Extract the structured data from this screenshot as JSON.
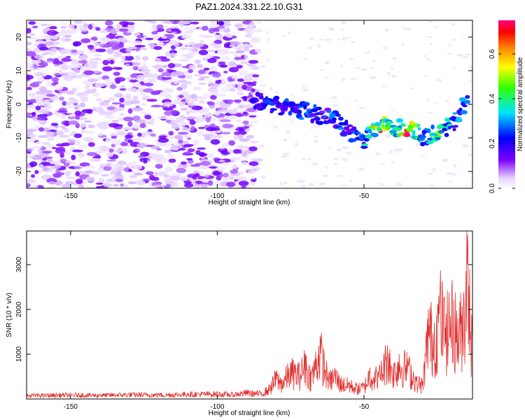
{
  "title": "PAZ1.2024.331.22.10.G31",
  "chart_data": [
    {
      "type": "heatmap",
      "title": "PAZ1.2024.331.22.10.G31",
      "xlabel": "Height of straight line (km)",
      "ylabel": "Frequency (Hz)",
      "xlim": [
        -165,
        -13
      ],
      "ylim": [
        -25,
        25
      ],
      "xticks": [
        -150,
        -100,
        -50
      ],
      "yticks": [
        -20,
        -10,
        0,
        10,
        20
      ],
      "colorbar": {
        "label": "Normalized spectral amplitude",
        "range": [
          0.0,
          0.75
        ],
        "ticks": [
          "0.0",
          "0.2",
          "0.4",
          "0.6"
        ],
        "colormap": "hsv (purple-blue-cyan-green-yellow-red-magenta)"
      },
      "noise_region_x": [
        -165,
        -86
      ],
      "signal_track": {
        "x": [
          -88,
          -80,
          -75,
          -70,
          -65,
          -60,
          -55,
          -50,
          -45,
          -40,
          -35,
          -30,
          -25,
          -20,
          -15
        ],
        "frequency": [
          1,
          0,
          -1,
          -2,
          -3,
          -5,
          -8,
          -11,
          -6,
          -7,
          -7,
          -10,
          -8,
          -6,
          1
        ],
        "amplitude": [
          0.2,
          0.3,
          0.25,
          0.3,
          0.25,
          0.3,
          0.25,
          0.35,
          0.7,
          0.4,
          0.75,
          0.35,
          0.5,
          0.35,
          0.3
        ]
      },
      "grid": false
    },
    {
      "type": "line",
      "xlabel": "Height of straight line (km)",
      "ylabel": "SNR (10 * v/v)",
      "xlim": [
        -165,
        -13
      ],
      "ylim": [
        0,
        3750
      ],
      "xticks": [
        -150,
        -100,
        -50
      ],
      "yticks": [
        1000,
        2000,
        3000
      ],
      "color": "#e03030",
      "series": [
        {
          "x": [
            -165,
            -150,
            -140,
            -130,
            -120,
            -110,
            -100,
            -95,
            -90,
            -85,
            -82,
            -80,
            -78,
            -75,
            -72,
            -70,
            -68,
            -65,
            -62,
            -60,
            -58,
            -55,
            -52,
            -50,
            -48,
            -45,
            -42,
            -40,
            -38,
            -35,
            -32,
            -30,
            -28,
            -26,
            -24,
            -22,
            -20,
            -18,
            -16,
            -15,
            -14,
            -13
          ],
          "values": [
            100,
            120,
            110,
            130,
            120,
            140,
            150,
            130,
            180,
            150,
            300,
            600,
            450,
            800,
            700,
            1000,
            600,
            1400,
            500,
            700,
            450,
            400,
            300,
            350,
            700,
            600,
            1200,
            800,
            1000,
            900,
            500,
            400,
            2000,
            1700,
            2500,
            1900,
            2500,
            1800,
            2300,
            3750,
            2900,
            1200
          ]
        }
      ],
      "grid": false
    }
  ]
}
